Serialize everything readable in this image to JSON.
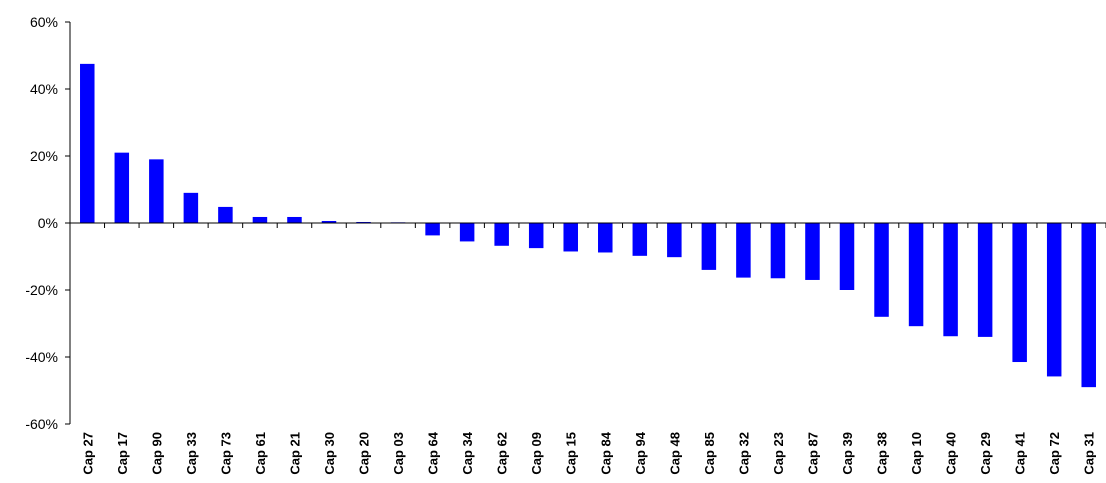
{
  "chart_data": {
    "type": "bar",
    "title": "",
    "xlabel": "",
    "ylabel": "",
    "ylim": [
      -0.6,
      0.6
    ],
    "yticks": [
      -0.6,
      -0.4,
      -0.2,
      0,
      0.2,
      0.4,
      0.6
    ],
    "ytick_labels": [
      "-60%",
      "-40%",
      "-20%",
      "0%",
      "20%",
      "40%",
      "60%"
    ],
    "grid": false,
    "legend": "none",
    "bar_color": "#0000ff",
    "categories": [
      "Cap 27",
      "Cap 17",
      "Cap 90",
      "Cap 33",
      "Cap 73",
      "Cap 61",
      "Cap 21",
      "Cap 30",
      "Cap 20",
      "Cap 03",
      "Cap 64",
      "Cap 34",
      "Cap 62",
      "Cap 09",
      "Cap 15",
      "Cap 84",
      "Cap 94",
      "Cap 48",
      "Cap 85",
      "Cap 32",
      "Cap 23",
      "Cap 87",
      "Cap 39",
      "Cap 38",
      "Cap 10",
      "Cap 40",
      "Cap 29",
      "Cap 41",
      "Cap 72",
      "Cap 31"
    ],
    "values": [
      0.475,
      0.21,
      0.19,
      0.09,
      0.048,
      0.018,
      0.018,
      0.006,
      0.003,
      0.002,
      -0.037,
      -0.055,
      -0.068,
      -0.075,
      -0.085,
      -0.088,
      -0.098,
      -0.102,
      -0.14,
      -0.163,
      -0.165,
      -0.17,
      -0.2,
      -0.28,
      -0.308,
      -0.338,
      -0.34,
      -0.415,
      -0.458,
      -0.49
    ]
  }
}
